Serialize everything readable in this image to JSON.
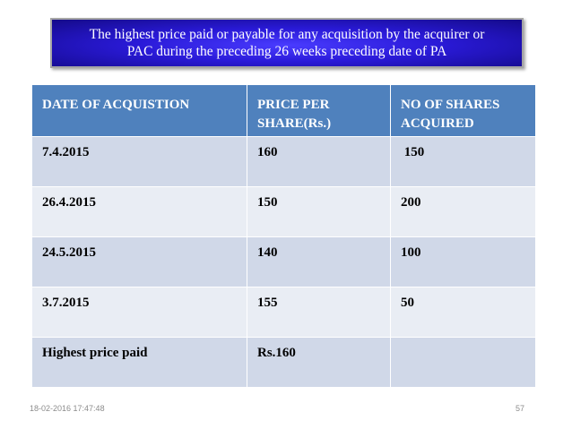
{
  "title": {
    "line1": "The highest price paid or payable for any acquisition by the acquirer or",
    "line2": "PAC during the preceding 26 weeks preceding date of PA"
  },
  "table": {
    "headers": {
      "date": "DATE OF ACQUISTION",
      "price_line1": "PRICE PER",
      "price_line2": "SHARE(Rs.)",
      "shares_line1": "NO OF SHARES",
      "shares_line2": "ACQUIRED"
    },
    "rows": [
      {
        "date": "7.4.2015",
        "price": "160",
        "shares": " 150"
      },
      {
        "date": "26.4.2015",
        "price": "150",
        "shares": "200"
      },
      {
        "date": "24.5.2015",
        "price": "140",
        "shares": "100"
      },
      {
        "date": "3.7.2015",
        "price": "155",
        "shares": "50"
      },
      {
        "date": "Highest price paid",
        "price": "Rs.160",
        "shares": ""
      }
    ]
  },
  "footer": {
    "date": "18-02-2016 17:47:48",
    "page": "57"
  }
}
